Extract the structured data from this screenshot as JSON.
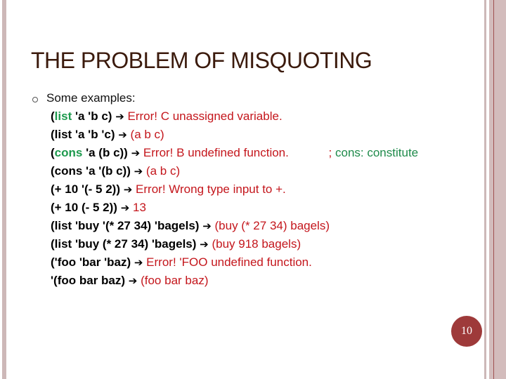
{
  "title": "THE PROBLEM OF MISQUOTING",
  "intro": "Some examples:",
  "arrow": "➔",
  "page_number": "10",
  "colors": {
    "title": "#3b1a0c",
    "keyword": "#1e9a4e",
    "result": "#c4161c",
    "accent": "#9e3a3a"
  },
  "lines": [
    {
      "pre": "(",
      "kw": "list",
      "code": " 'a 'b c)",
      "result": "Error! C unassigned variable.",
      "comment": ""
    },
    {
      "pre": "",
      "kw": "",
      "code": "(list 'a 'b 'c)",
      "result": "(a b c)",
      "comment": ""
    },
    {
      "pre": "(",
      "kw": "cons",
      "code": " 'a (b c))",
      "result": "Error! B undefined function.",
      "comment": "cons: constitute"
    },
    {
      "pre": "",
      "kw": "",
      "code": "(cons 'a '(b c))",
      "result": "(a b c)",
      "comment": ""
    },
    {
      "pre": "",
      "kw": "",
      "code": "(+ 10 '(- 5 2))",
      "result": "Error! Wrong type input to +.",
      "comment": ""
    },
    {
      "pre": "",
      "kw": "",
      "code": "(+ 10 (- 5 2))",
      "result": "13",
      "comment": ""
    },
    {
      "pre": "",
      "kw": "",
      "code": "(list 'buy '(* 27 34) 'bagels)",
      "result": "(buy (* 27 34) bagels)",
      "comment": ""
    },
    {
      "pre": "",
      "kw": "",
      "code": "(list 'buy (* 27 34) 'bagels)",
      "result": "(buy 918 bagels)",
      "comment": ""
    },
    {
      "pre": "",
      "kw": "",
      "code": "('foo 'bar 'baz)",
      "result": "Error! 'FOO undefined function.",
      "comment": ""
    },
    {
      "pre": "",
      "kw": "",
      "code": "'(foo bar baz)",
      "result": "(foo bar baz)",
      "comment": ""
    }
  ]
}
